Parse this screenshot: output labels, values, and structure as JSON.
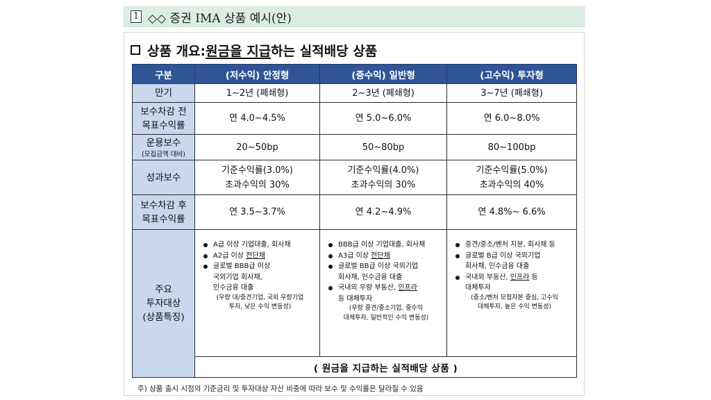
{
  "header": {
    "number": "1",
    "title": "◇◇ 증권 IMA 상품 예시(안)"
  },
  "overview": {
    "prefix": "상품 개요: ",
    "underlined": "원금을 지급",
    "suffix": "하는 실적배당 상품"
  },
  "table": {
    "headers": [
      "구분",
      "(저수익) 안정형",
      "(중수익) 일반형",
      "(고수익) 투자형"
    ],
    "rows": {
      "maturity": {
        "label": "만기",
        "values": [
          "1~2년 (폐쇄형)",
          "2~3년 (폐쇄형)",
          "3~7년 (폐쇄형)"
        ]
      },
      "target_before": {
        "label_line1": "보수차감 전",
        "label_line2": "목표수익률",
        "values": [
          "연 4.0~4.5%",
          "연 5.0~6.0%",
          "연 6.0~8.0%"
        ]
      },
      "mgmt_fee": {
        "label_line1": "운용보수",
        "label_line2": "(모집금액 대비)",
        "values": [
          "20~50bp",
          "50~80bp",
          "80~100bp"
        ]
      },
      "perf_fee": {
        "label": "성과보수",
        "values": [
          {
            "line1": "기준수익률(3.0%)",
            "line2": "초과수익의 30%"
          },
          {
            "line1": "기준수익률(4.0%)",
            "line2": "초과수익의 30%"
          },
          {
            "line1": "기준수익률(5.0%)",
            "line2": "초과수익의 40%"
          }
        ]
      },
      "target_after": {
        "label_line1": "보수차감 후",
        "label_line2": "목표수익률",
        "values": [
          "연 3.5~3.7%",
          "연 4.2~4.9%",
          "연 4.8%~ 6.6%"
        ]
      },
      "investments": {
        "label_line1": "주요",
        "label_line2": "투자대상",
        "label_line3": "(상품특징)",
        "col1": {
          "b1": "A급 이상 기업대출, 회사채",
          "b2_pre": "A2급 이상 ",
          "b2_ul": "전단채",
          "b3_line1": "글로벌 BBB급 이상",
          "b3_line2": "국외기업 회사채,",
          "b3_line3": "인수금융 대출",
          "note_line1": "(우량 대/중견기업, 국외 우량기업",
          "note_line2": "투자, 낮은 수익 변동성)"
        },
        "col2": {
          "b1": "BBB급 이상 기업대출, 회사채",
          "b2_pre": "A3급 이상 ",
          "b2_ul": "전단채",
          "b3_line1": "글로벌 BB급 이상 국외기업",
          "b3_line2": "회사채, 인수금융 대출",
          "b4_pre": "국내외 우량 부동산, ",
          "b4_ul": "인프라",
          "b4_line2": "등 대체투자",
          "note_line1": "(우량 중견/중소기업, 중수익",
          "note_line2": "대체투자, 일반적인 수익 변동성)"
        },
        "col3": {
          "b1": "중견/중소/벤처 지분, 회사채 등",
          "b2_line1": "글로벌 B급 이상 국외기업",
          "b2_line2": "회사채, 인수금융 대출",
          "b3_pre": "국내외 부동산, ",
          "b3_ul": "인프라",
          "b3_post": " 등",
          "b3_line2": "대체투자",
          "note_line1": "(중소/벤처 모험자본 중심, 고수익",
          "note_line2": "대체투자, 높은 수익 변동성)"
        }
      },
      "footer": "( 원금을 지급하는 실적배당 상품 )"
    }
  },
  "footnote": "주) 상품 출시 시점의 기준금리 및 투자대상 자산 비중에 따라 보수 및 수익률은 달라질 수 있음",
  "colors": {
    "header_band": "#dbeee4",
    "table_header": "#2f5597",
    "row_header": "#c9d7ef"
  }
}
